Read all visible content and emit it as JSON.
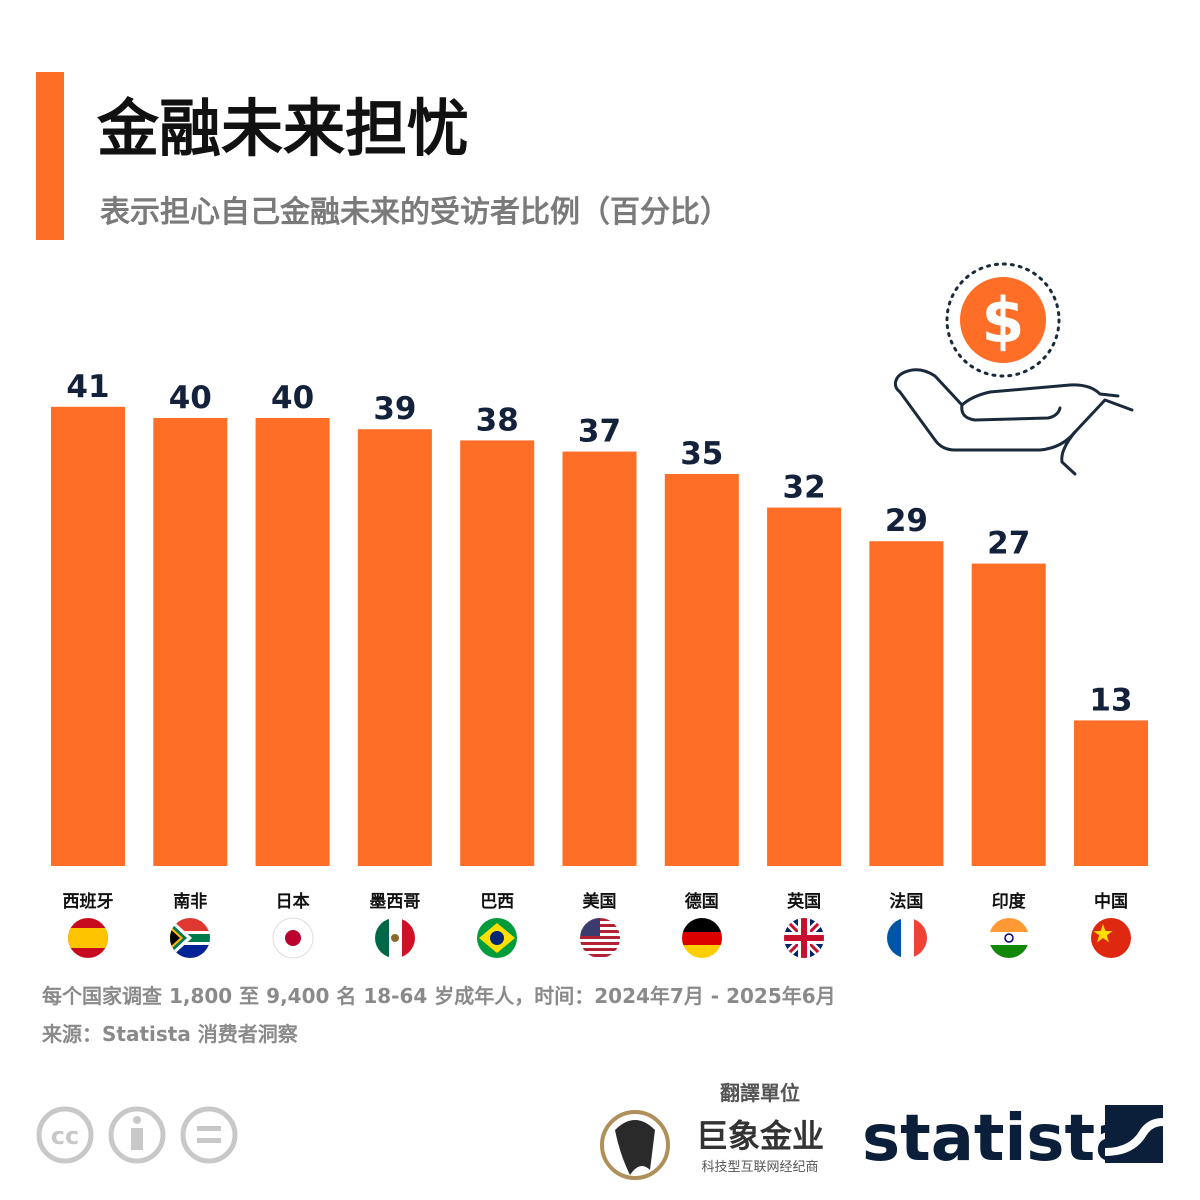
{
  "chart_data": {
    "type": "bar",
    "title": "金融未来担忧",
    "subtitle": "表示担心自己金融未来的受访者比例（百分比）",
    "categories": [
      "西班牙",
      "南非",
      "日本",
      "墨西哥",
      "巴西",
      "美国",
      "德国",
      "英国",
      "法国",
      "印度",
      "中国"
    ],
    "values": [
      41,
      40,
      40,
      39,
      38,
      37,
      35,
      32,
      29,
      27,
      13
    ],
    "color": "#ff6e26",
    "note": "每个国家调查 1,800 至 9,400 名 18-64 岁成年人，时间：2024年7月 - 2025年6月",
    "source": "来源：Statista 消费者洞察",
    "translator_heading": "翻譯單位",
    "translator_name": "巨象金业",
    "translator_tagline": "科技型互联网经纪商",
    "brand": "statista"
  }
}
